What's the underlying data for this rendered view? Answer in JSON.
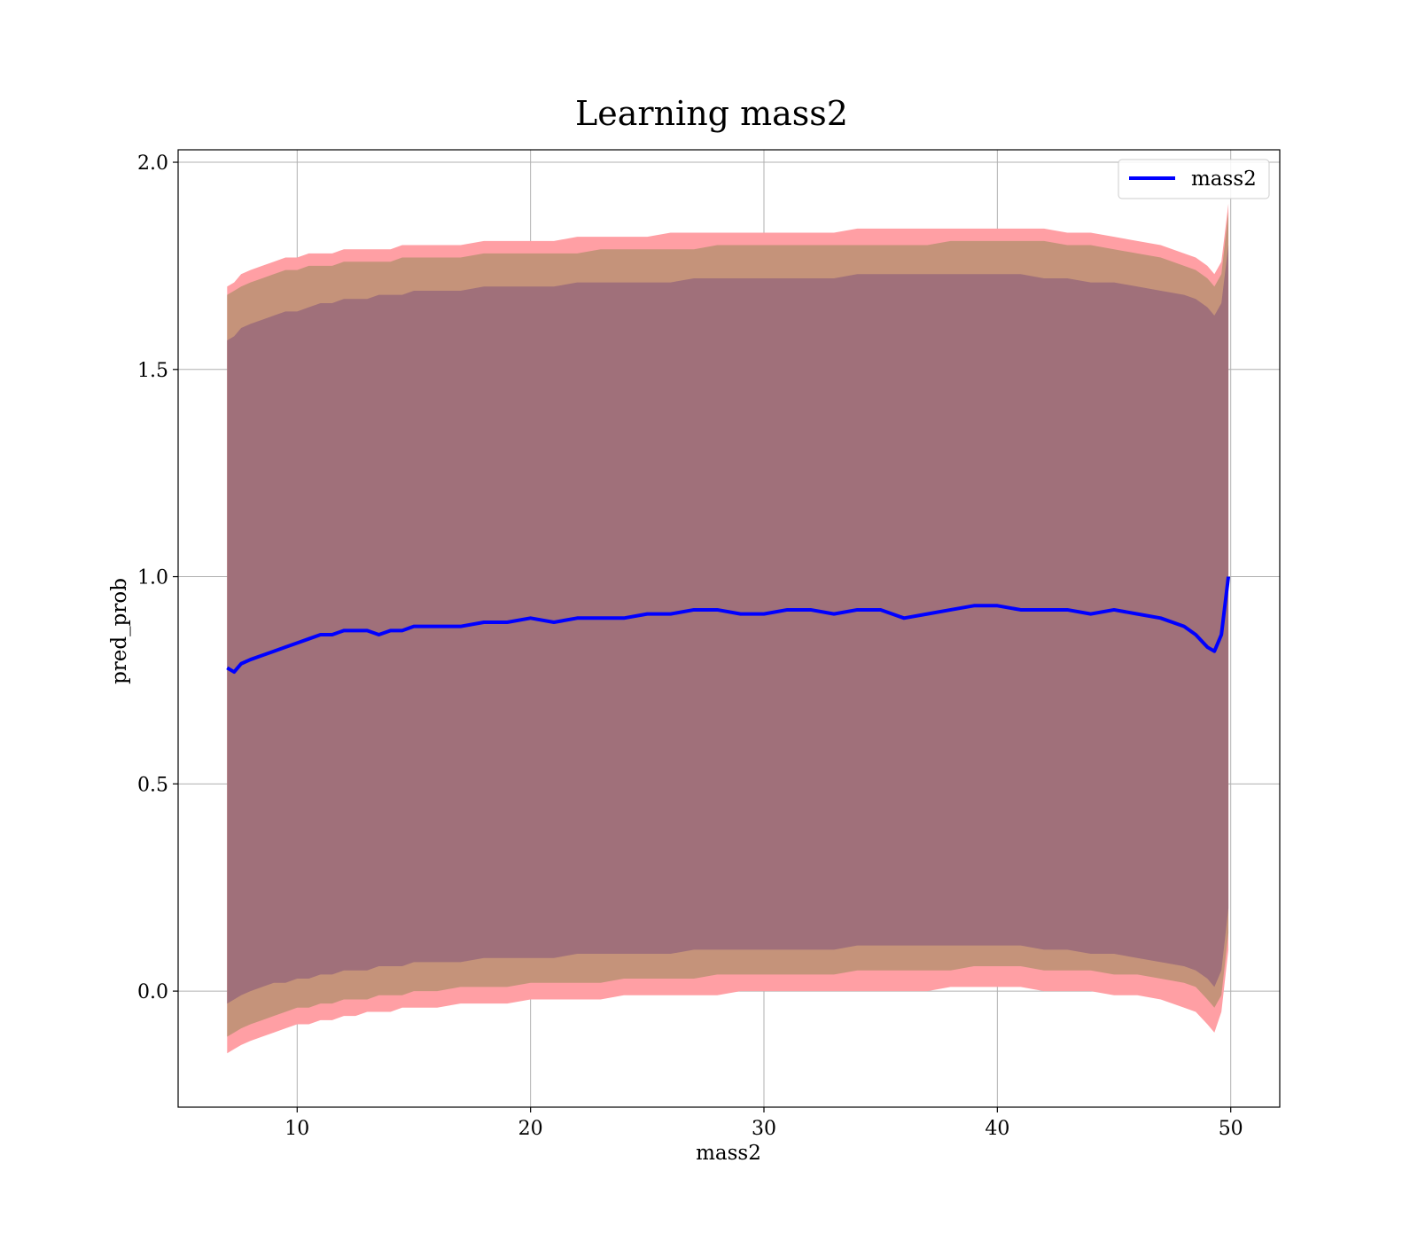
{
  "chart_data": {
    "type": "area",
    "title": "Learning mass2",
    "xlabel": "mass2",
    "ylabel": "pred_prob",
    "xlim": [
      4.9,
      52.1
    ],
    "ylim": [
      -0.28,
      2.03
    ],
    "xticks": [
      10,
      20,
      30,
      40,
      50
    ],
    "yticks": [
      0.0,
      0.5,
      1.0,
      1.5,
      2.0
    ],
    "xtick_labels": [
      "10",
      "20",
      "30",
      "40",
      "50"
    ],
    "ytick_labels": [
      "0.0",
      "0.5",
      "1.0",
      "1.5",
      "2.0"
    ],
    "grid": true,
    "legend": {
      "position": "top-right",
      "entries": [
        "mass2"
      ]
    },
    "colors": {
      "line": "#0000ff",
      "band_outer": "#ff9fa4",
      "band_middle": "#c5937a",
      "band_inner": "#a0707a"
    },
    "series": [
      {
        "name": "mass2",
        "x": [
          7.0,
          7.3,
          7.6,
          8.0,
          8.5,
          9.0,
          9.5,
          10.0,
          10.5,
          11.0,
          11.5,
          12.0,
          12.5,
          13.0,
          13.5,
          14.0,
          14.5,
          15.0,
          16.0,
          17.0,
          18.0,
          19.0,
          20.0,
          21.0,
          22.0,
          23.0,
          24.0,
          25.0,
          26.0,
          27.0,
          28.0,
          29.0,
          30.0,
          31.0,
          32.0,
          33.0,
          34.0,
          35.0,
          36.0,
          37.0,
          38.0,
          39.0,
          40.0,
          41.0,
          42.0,
          43.0,
          44.0,
          45.0,
          46.0,
          47.0,
          48.0,
          48.5,
          49.0,
          49.3,
          49.6,
          49.9
        ],
        "values": [
          0.78,
          0.77,
          0.79,
          0.8,
          0.81,
          0.82,
          0.83,
          0.84,
          0.85,
          0.86,
          0.86,
          0.87,
          0.87,
          0.87,
          0.86,
          0.87,
          0.87,
          0.88,
          0.88,
          0.88,
          0.89,
          0.89,
          0.9,
          0.89,
          0.9,
          0.9,
          0.9,
          0.91,
          0.91,
          0.92,
          0.92,
          0.91,
          0.91,
          0.92,
          0.92,
          0.91,
          0.92,
          0.92,
          0.9,
          0.91,
          0.92,
          0.93,
          0.93,
          0.92,
          0.92,
          0.92,
          0.91,
          0.92,
          0.91,
          0.9,
          0.88,
          0.86,
          0.83,
          0.82,
          0.86,
          1.0
        ]
      }
    ],
    "bands": [
      {
        "level": "outer",
        "upper": [
          1.7,
          1.71,
          1.73,
          1.74,
          1.75,
          1.76,
          1.77,
          1.77,
          1.78,
          1.78,
          1.78,
          1.79,
          1.79,
          1.79,
          1.79,
          1.79,
          1.8,
          1.8,
          1.8,
          1.8,
          1.81,
          1.81,
          1.81,
          1.81,
          1.82,
          1.82,
          1.82,
          1.82,
          1.83,
          1.83,
          1.83,
          1.83,
          1.83,
          1.83,
          1.83,
          1.83,
          1.84,
          1.84,
          1.84,
          1.84,
          1.84,
          1.84,
          1.84,
          1.84,
          1.84,
          1.83,
          1.83,
          1.82,
          1.81,
          1.8,
          1.78,
          1.77,
          1.75,
          1.73,
          1.76,
          1.9
        ],
        "lower": [
          -0.15,
          -0.14,
          -0.13,
          -0.12,
          -0.11,
          -0.1,
          -0.09,
          -0.08,
          -0.08,
          -0.07,
          -0.07,
          -0.06,
          -0.06,
          -0.05,
          -0.05,
          -0.05,
          -0.04,
          -0.04,
          -0.04,
          -0.03,
          -0.03,
          -0.03,
          -0.02,
          -0.02,
          -0.02,
          -0.02,
          -0.01,
          -0.01,
          -0.01,
          -0.01,
          -0.01,
          0.0,
          0.0,
          0.0,
          0.0,
          0.0,
          0.0,
          0.0,
          0.0,
          0.0,
          0.01,
          0.01,
          0.01,
          0.01,
          0.0,
          0.0,
          0.0,
          -0.01,
          -0.01,
          -0.02,
          -0.04,
          -0.05,
          -0.08,
          -0.1,
          -0.05,
          0.1
        ]
      },
      {
        "level": "middle",
        "upper": [
          1.68,
          1.69,
          1.7,
          1.71,
          1.72,
          1.73,
          1.74,
          1.74,
          1.75,
          1.75,
          1.75,
          1.76,
          1.76,
          1.76,
          1.76,
          1.76,
          1.77,
          1.77,
          1.77,
          1.77,
          1.78,
          1.78,
          1.78,
          1.78,
          1.78,
          1.79,
          1.79,
          1.79,
          1.79,
          1.79,
          1.8,
          1.8,
          1.8,
          1.8,
          1.8,
          1.8,
          1.8,
          1.8,
          1.8,
          1.8,
          1.81,
          1.81,
          1.81,
          1.81,
          1.81,
          1.8,
          1.8,
          1.79,
          1.78,
          1.77,
          1.75,
          1.74,
          1.72,
          1.7,
          1.73,
          1.88
        ],
        "lower": [
          -0.11,
          -0.1,
          -0.09,
          -0.08,
          -0.07,
          -0.06,
          -0.05,
          -0.04,
          -0.04,
          -0.03,
          -0.03,
          -0.02,
          -0.02,
          -0.02,
          -0.01,
          -0.01,
          -0.01,
          0.0,
          0.0,
          0.01,
          0.01,
          0.01,
          0.02,
          0.02,
          0.02,
          0.02,
          0.03,
          0.03,
          0.03,
          0.03,
          0.04,
          0.04,
          0.04,
          0.04,
          0.04,
          0.04,
          0.05,
          0.05,
          0.05,
          0.05,
          0.05,
          0.06,
          0.06,
          0.06,
          0.05,
          0.05,
          0.05,
          0.04,
          0.04,
          0.03,
          0.02,
          0.01,
          -0.02,
          -0.04,
          -0.01,
          0.14
        ]
      },
      {
        "level": "inner",
        "upper": [
          1.57,
          1.58,
          1.6,
          1.61,
          1.62,
          1.63,
          1.64,
          1.64,
          1.65,
          1.66,
          1.66,
          1.67,
          1.67,
          1.67,
          1.68,
          1.68,
          1.68,
          1.69,
          1.69,
          1.69,
          1.7,
          1.7,
          1.7,
          1.7,
          1.71,
          1.71,
          1.71,
          1.71,
          1.71,
          1.72,
          1.72,
          1.72,
          1.72,
          1.72,
          1.72,
          1.72,
          1.73,
          1.73,
          1.73,
          1.73,
          1.73,
          1.73,
          1.73,
          1.73,
          1.72,
          1.72,
          1.71,
          1.71,
          1.7,
          1.69,
          1.68,
          1.67,
          1.65,
          1.63,
          1.66,
          1.8
        ],
        "lower": [
          -0.03,
          -0.02,
          -0.01,
          0.0,
          0.01,
          0.02,
          0.02,
          0.03,
          0.03,
          0.04,
          0.04,
          0.05,
          0.05,
          0.05,
          0.06,
          0.06,
          0.06,
          0.07,
          0.07,
          0.07,
          0.08,
          0.08,
          0.08,
          0.08,
          0.09,
          0.09,
          0.09,
          0.09,
          0.09,
          0.1,
          0.1,
          0.1,
          0.1,
          0.1,
          0.1,
          0.1,
          0.11,
          0.11,
          0.11,
          0.11,
          0.11,
          0.11,
          0.11,
          0.11,
          0.1,
          0.1,
          0.09,
          0.09,
          0.08,
          0.07,
          0.06,
          0.05,
          0.03,
          0.01,
          0.05,
          0.2
        ]
      }
    ]
  }
}
